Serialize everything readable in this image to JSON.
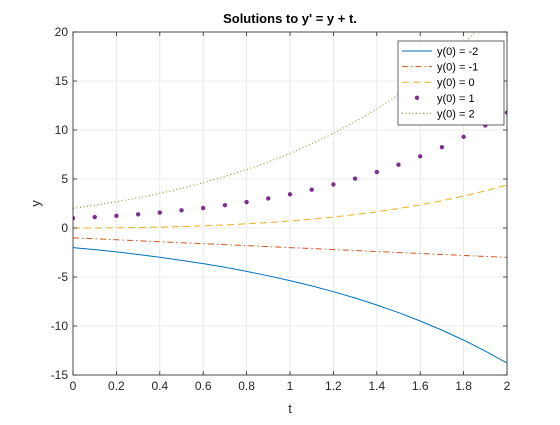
{
  "chart_data": {
    "type": "line",
    "title": "Solutions to y' = y + t.",
    "xlabel": "t",
    "ylabel": "y",
    "xlim": [
      0,
      2
    ],
    "ylim": [
      -15,
      20
    ],
    "xticks": [
      0,
      0.2,
      0.4,
      0.6,
      0.8,
      1,
      1.2,
      1.4,
      1.6,
      1.8,
      2
    ],
    "xtick_labels": [
      "0",
      "0.2",
      "0.4",
      "0.6",
      "0.8",
      "1",
      "1.2",
      "1.4",
      "1.6",
      "1.8",
      "2"
    ],
    "yticks": [
      -15,
      -10,
      -5,
      0,
      5,
      10,
      15,
      20
    ],
    "ytick_labels": [
      "-15",
      "-10",
      "-5",
      "0",
      "5",
      "10",
      "15",
      "20"
    ],
    "grid": true,
    "legend_position": "top-right",
    "x": [
      0,
      0.1,
      0.2,
      0.3,
      0.4,
      0.5,
      0.6,
      0.7,
      0.8,
      0.9,
      1.0,
      1.1,
      1.2,
      1.3,
      1.4,
      1.5,
      1.6,
      1.7,
      1.8,
      1.9,
      2.0
    ],
    "series": [
      {
        "name": "y(0) = -2",
        "color": "#0072BD",
        "style": "solid",
        "values": [
          -2,
          -2.21,
          -2.44,
          -2.7,
          -2.98,
          -3.3,
          -3.64,
          -4.01,
          -4.43,
          -4.88,
          -5.37,
          -5.91,
          -6.5,
          -7.14,
          -7.86,
          -8.63,
          -9.49,
          -10.42,
          -11.44,
          -12.56,
          -13.78
        ]
      },
      {
        "name": "y(0) = -1",
        "color": "#D95319",
        "style": "dashdot",
        "values": [
          -1,
          -1.1,
          -1.2,
          -1.3,
          -1.4,
          -1.5,
          -1.6,
          -1.7,
          -1.8,
          -1.9,
          -2.0,
          -2.1,
          -2.2,
          -2.3,
          -2.4,
          -2.5,
          -2.6,
          -2.7,
          -2.8,
          -2.9,
          -3.0
        ]
      },
      {
        "name": "y(0) = 0",
        "color": "#EDB120",
        "style": "dashed",
        "values": [
          0,
          0.005,
          0.021,
          0.05,
          0.092,
          0.149,
          0.222,
          0.314,
          0.426,
          0.56,
          0.718,
          0.904,
          1.12,
          1.369,
          1.655,
          1.982,
          2.353,
          2.774,
          3.25,
          3.786,
          4.389
        ]
      },
      {
        "name": "y(0) = 1",
        "color": "#7E2F8E",
        "style": "dots",
        "values": [
          1,
          1.11,
          1.24,
          1.4,
          1.58,
          1.8,
          2.04,
          2.33,
          2.65,
          3.02,
          3.44,
          3.91,
          4.44,
          5.04,
          5.71,
          6.46,
          7.31,
          8.25,
          9.3,
          10.47,
          11.78
        ]
      },
      {
        "name": "y(0) = 2",
        "color": "#77AC30",
        "style": "dotted",
        "values": [
          2,
          2.32,
          2.68,
          3.08,
          3.53,
          4.05,
          4.62,
          5.26,
          5.96,
          6.75,
          7.62,
          8.59,
          9.66,
          10.84,
          12.14,
          13.58,
          15.16,
          16.91,
          18.84,
          20.97,
          23.32
        ]
      }
    ]
  }
}
